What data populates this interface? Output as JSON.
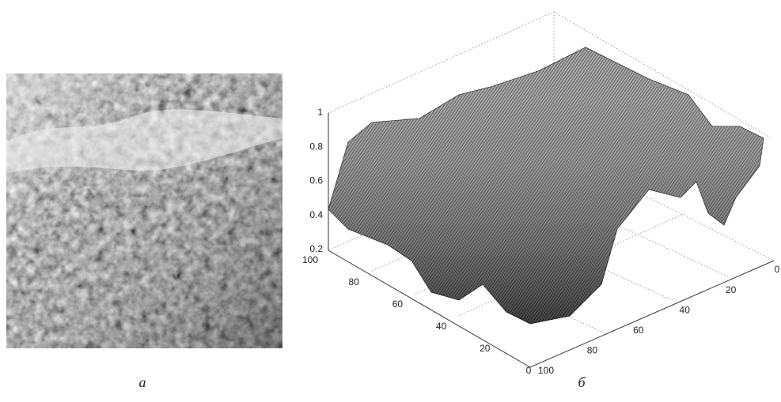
{
  "panels": [
    {
      "label": "а"
    },
    {
      "label": "б",
      "z_ticks": [
        0.2,
        0.4,
        0.6,
        0.8,
        1
      ],
      "y_ticks": [
        100,
        80,
        60,
        40,
        20,
        0
      ],
      "x_ticks": [
        0,
        20,
        40,
        60,
        80,
        100
      ]
    }
  ]
}
